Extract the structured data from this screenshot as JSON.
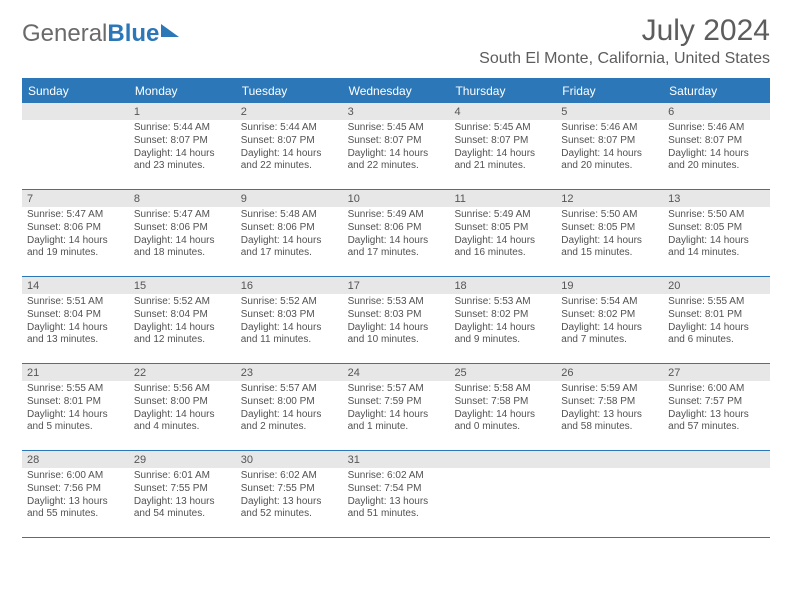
{
  "logo": {
    "part1": "General",
    "part2": "Blue"
  },
  "title": "July 2024",
  "location": "South El Monte, California, United States",
  "header_bg": "#2b77b8",
  "daynames": [
    "Sunday",
    "Monday",
    "Tuesday",
    "Wednesday",
    "Thursday",
    "Friday",
    "Saturday"
  ],
  "weeks": [
    [
      {
        "num": "",
        "lines": []
      },
      {
        "num": "1",
        "lines": [
          "Sunrise: 5:44 AM",
          "Sunset: 8:07 PM",
          "Daylight: 14 hours and 23 minutes."
        ]
      },
      {
        "num": "2",
        "lines": [
          "Sunrise: 5:44 AM",
          "Sunset: 8:07 PM",
          "Daylight: 14 hours and 22 minutes."
        ]
      },
      {
        "num": "3",
        "lines": [
          "Sunrise: 5:45 AM",
          "Sunset: 8:07 PM",
          "Daylight: 14 hours and 22 minutes."
        ]
      },
      {
        "num": "4",
        "lines": [
          "Sunrise: 5:45 AM",
          "Sunset: 8:07 PM",
          "Daylight: 14 hours and 21 minutes."
        ]
      },
      {
        "num": "5",
        "lines": [
          "Sunrise: 5:46 AM",
          "Sunset: 8:07 PM",
          "Daylight: 14 hours and 20 minutes."
        ]
      },
      {
        "num": "6",
        "lines": [
          "Sunrise: 5:46 AM",
          "Sunset: 8:07 PM",
          "Daylight: 14 hours and 20 minutes."
        ]
      }
    ],
    [
      {
        "num": "7",
        "lines": [
          "Sunrise: 5:47 AM",
          "Sunset: 8:06 PM",
          "Daylight: 14 hours and 19 minutes."
        ]
      },
      {
        "num": "8",
        "lines": [
          "Sunrise: 5:47 AM",
          "Sunset: 8:06 PM",
          "Daylight: 14 hours and 18 minutes."
        ]
      },
      {
        "num": "9",
        "lines": [
          "Sunrise: 5:48 AM",
          "Sunset: 8:06 PM",
          "Daylight: 14 hours and 17 minutes."
        ]
      },
      {
        "num": "10",
        "lines": [
          "Sunrise: 5:49 AM",
          "Sunset: 8:06 PM",
          "Daylight: 14 hours and 17 minutes."
        ]
      },
      {
        "num": "11",
        "lines": [
          "Sunrise: 5:49 AM",
          "Sunset: 8:05 PM",
          "Daylight: 14 hours and 16 minutes."
        ]
      },
      {
        "num": "12",
        "lines": [
          "Sunrise: 5:50 AM",
          "Sunset: 8:05 PM",
          "Daylight: 14 hours and 15 minutes."
        ]
      },
      {
        "num": "13",
        "lines": [
          "Sunrise: 5:50 AM",
          "Sunset: 8:05 PM",
          "Daylight: 14 hours and 14 minutes."
        ]
      }
    ],
    [
      {
        "num": "14",
        "lines": [
          "Sunrise: 5:51 AM",
          "Sunset: 8:04 PM",
          "Daylight: 14 hours and 13 minutes."
        ]
      },
      {
        "num": "15",
        "lines": [
          "Sunrise: 5:52 AM",
          "Sunset: 8:04 PM",
          "Daylight: 14 hours and 12 minutes."
        ]
      },
      {
        "num": "16",
        "lines": [
          "Sunrise: 5:52 AM",
          "Sunset: 8:03 PM",
          "Daylight: 14 hours and 11 minutes."
        ]
      },
      {
        "num": "17",
        "lines": [
          "Sunrise: 5:53 AM",
          "Sunset: 8:03 PM",
          "Daylight: 14 hours and 10 minutes."
        ]
      },
      {
        "num": "18",
        "lines": [
          "Sunrise: 5:53 AM",
          "Sunset: 8:02 PM",
          "Daylight: 14 hours and 9 minutes."
        ]
      },
      {
        "num": "19",
        "lines": [
          "Sunrise: 5:54 AM",
          "Sunset: 8:02 PM",
          "Daylight: 14 hours and 7 minutes."
        ]
      },
      {
        "num": "20",
        "lines": [
          "Sunrise: 5:55 AM",
          "Sunset: 8:01 PM",
          "Daylight: 14 hours and 6 minutes."
        ]
      }
    ],
    [
      {
        "num": "21",
        "lines": [
          "Sunrise: 5:55 AM",
          "Sunset: 8:01 PM",
          "Daylight: 14 hours and 5 minutes."
        ]
      },
      {
        "num": "22",
        "lines": [
          "Sunrise: 5:56 AM",
          "Sunset: 8:00 PM",
          "Daylight: 14 hours and 4 minutes."
        ]
      },
      {
        "num": "23",
        "lines": [
          "Sunrise: 5:57 AM",
          "Sunset: 8:00 PM",
          "Daylight: 14 hours and 2 minutes."
        ]
      },
      {
        "num": "24",
        "lines": [
          "Sunrise: 5:57 AM",
          "Sunset: 7:59 PM",
          "Daylight: 14 hours and 1 minute."
        ]
      },
      {
        "num": "25",
        "lines": [
          "Sunrise: 5:58 AM",
          "Sunset: 7:58 PM",
          "Daylight: 14 hours and 0 minutes."
        ]
      },
      {
        "num": "26",
        "lines": [
          "Sunrise: 5:59 AM",
          "Sunset: 7:58 PM",
          "Daylight: 13 hours and 58 minutes."
        ]
      },
      {
        "num": "27",
        "lines": [
          "Sunrise: 6:00 AM",
          "Sunset: 7:57 PM",
          "Daylight: 13 hours and 57 minutes."
        ]
      }
    ],
    [
      {
        "num": "28",
        "lines": [
          "Sunrise: 6:00 AM",
          "Sunset: 7:56 PM",
          "Daylight: 13 hours and 55 minutes."
        ]
      },
      {
        "num": "29",
        "lines": [
          "Sunrise: 6:01 AM",
          "Sunset: 7:55 PM",
          "Daylight: 13 hours and 54 minutes."
        ]
      },
      {
        "num": "30",
        "lines": [
          "Sunrise: 6:02 AM",
          "Sunset: 7:55 PM",
          "Daylight: 13 hours and 52 minutes."
        ]
      },
      {
        "num": "31",
        "lines": [
          "Sunrise: 6:02 AM",
          "Sunset: 7:54 PM",
          "Daylight: 13 hours and 51 minutes."
        ]
      },
      {
        "num": "",
        "lines": []
      },
      {
        "num": "",
        "lines": []
      },
      {
        "num": "",
        "lines": []
      }
    ]
  ]
}
